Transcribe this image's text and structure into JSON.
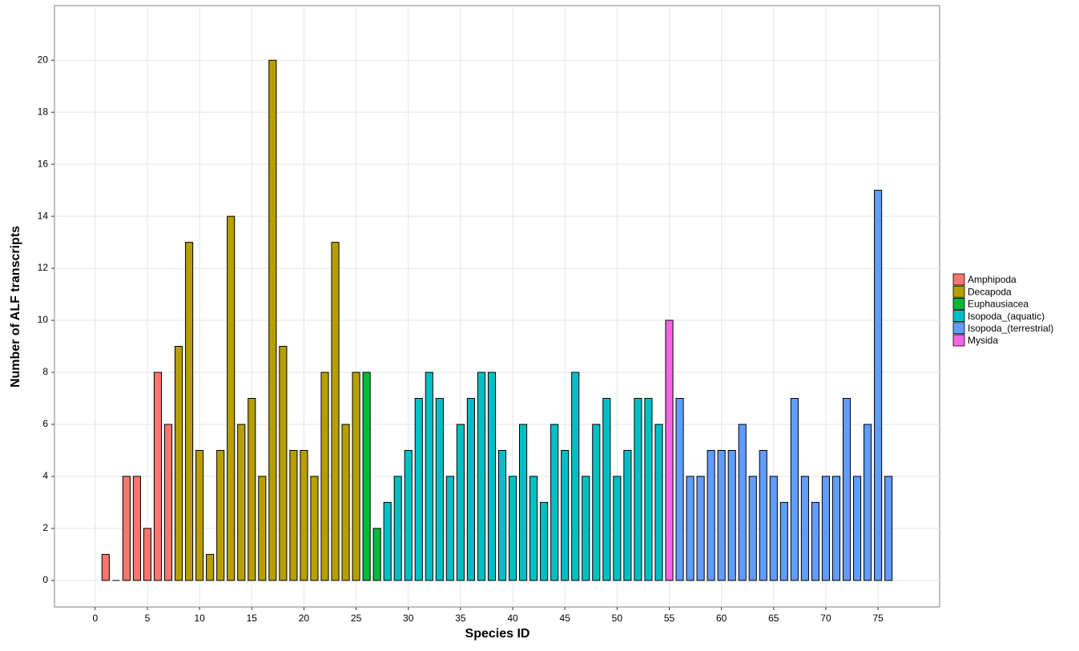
{
  "chart_data": {
    "type": "bar",
    "x_label": "Species ID",
    "y_label": "Number of ALF transcripts",
    "xlim": [
      -3.9,
      80.9
    ],
    "ylim": [
      -1.02,
      22.1
    ],
    "xticks": [
      0,
      5,
      10,
      15,
      20,
      25,
      30,
      35,
      40,
      45,
      50,
      55,
      60,
      65,
      70,
      75
    ],
    "yticks": [
      0,
      2,
      4,
      6,
      8,
      10,
      12,
      14,
      16,
      18,
      20
    ],
    "grid": true,
    "legend": "right",
    "series": [
      {
        "name": "Amphipoda",
        "color": "#F8766D",
        "x": [
          1,
          2,
          3,
          4,
          5,
          6,
          7
        ],
        "values": [
          1,
          0,
          4,
          4,
          2,
          8,
          6
        ]
      },
      {
        "name": "Decapoda",
        "color": "#B79F00",
        "x": [
          8,
          9,
          10,
          11,
          12,
          13,
          14,
          15,
          16,
          17,
          18,
          19,
          20,
          21,
          22,
          23,
          24,
          25
        ],
        "values": [
          9,
          13,
          5,
          1,
          5,
          14,
          6,
          7,
          4,
          20,
          9,
          5,
          5,
          4,
          8,
          13,
          6,
          8
        ]
      },
      {
        "name": "Euphausiacea",
        "color": "#00BA38",
        "x": [
          26,
          27
        ],
        "values": [
          8,
          2
        ]
      },
      {
        "name": "Isopoda_(aquatic)",
        "color": "#00BFC4",
        "x": [
          28,
          29,
          30,
          31,
          32,
          33,
          34,
          35,
          36,
          37,
          38,
          39,
          40,
          41,
          42,
          43,
          44,
          45,
          46,
          47,
          48,
          49,
          50,
          51,
          52,
          53,
          54
        ],
        "values": [
          3,
          4,
          5,
          7,
          8,
          7,
          4,
          6,
          7,
          8,
          8,
          5,
          4,
          6,
          4,
          3,
          6,
          5,
          8,
          4,
          6,
          7,
          4,
          5,
          7,
          7,
          6
        ]
      },
      {
        "name": "Isopoda_(terrestrial)",
        "color": "#619CFF",
        "x": [
          56,
          57,
          58,
          59,
          60,
          61,
          62,
          63,
          64,
          65,
          66,
          67,
          68,
          69,
          70,
          71,
          72,
          73,
          74,
          75,
          76
        ],
        "values": [
          7,
          4,
          4,
          5,
          5,
          5,
          6,
          4,
          5,
          4,
          3,
          7,
          4,
          3,
          4,
          4,
          7,
          4,
          6,
          15,
          4
        ]
      },
      {
        "name": "Mysida",
        "color": "#F564E3",
        "x": [
          55
        ],
        "values": [
          10
        ]
      }
    ]
  }
}
